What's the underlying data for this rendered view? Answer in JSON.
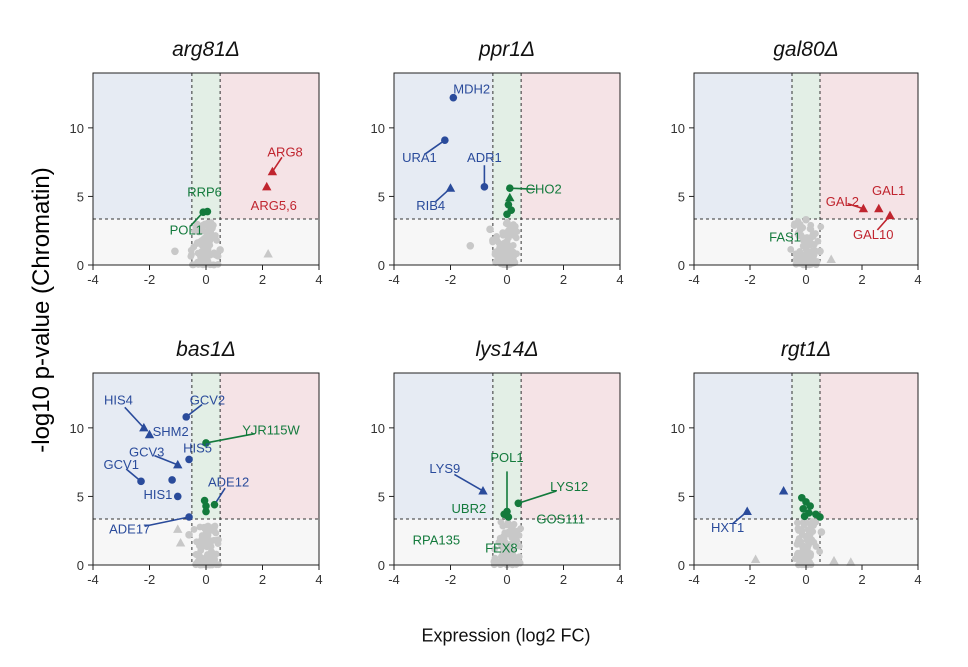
{
  "figure": {
    "ylabel": "-log10 p-value (Chromatin)",
    "xlabel": "Expression (log2 FC)"
  },
  "colors": {
    "down": "#2a4b9b",
    "up": "#c0252f",
    "neutral": "#137a3c",
    "background_point": "#c8c8c8",
    "down_region": "#e6ebf3",
    "up_region": "#f5e3e6",
    "neutral_region": "#e3efe6",
    "below_threshold_region": "#f7f7f7"
  },
  "chart_data": [
    {
      "type": "scatter",
      "title": "arg81Δ",
      "xlabel": "",
      "ylabel": "",
      "xlim": [
        -4,
        4
      ],
      "ylim": [
        0,
        14
      ],
      "xticks": [
        "-4",
        "-2",
        "0",
        "2",
        "4"
      ],
      "yticks": [
        "0",
        "5",
        "10"
      ],
      "fc_thresholds": [
        -0.5,
        0.5
      ],
      "pval_threshold": 3.35,
      "highlighted": [
        {
          "label": "ARG8",
          "x": 2.35,
          "y": 6.8,
          "marker": "triangle",
          "color": "up"
        },
        {
          "label": "ARG5,6",
          "x": 2.15,
          "y": 5.7,
          "marker": "triangle",
          "color": "up"
        },
        {
          "label": "RRP6",
          "x": 0.05,
          "y": 3.9,
          "marker": "circle",
          "color": "neutral"
        },
        {
          "label": "POL1",
          "x": -0.1,
          "y": 3.85,
          "marker": "circle",
          "color": "neutral"
        }
      ],
      "background": [
        {
          "x": -1.1,
          "y": 1.0,
          "marker": "circle"
        },
        {
          "x": -0.3,
          "y": 1.6,
          "marker": "circle"
        },
        {
          "x": 2.2,
          "y": 0.8,
          "marker": "triangle"
        },
        {
          "x": 0.5,
          "y": 1.1,
          "marker": "circle"
        }
      ],
      "annotations": [
        {
          "text": "ARG8",
          "x": 2.8,
          "y": 8.2,
          "color": "up"
        },
        {
          "text": "ARG5,6",
          "x": 2.4,
          "y": 4.3,
          "color": "up"
        },
        {
          "text": "RRP6",
          "x": -0.05,
          "y": 5.3,
          "color": "neutral"
        },
        {
          "text": "POL1",
          "x": -0.7,
          "y": 2.5,
          "color": "neutral"
        }
      ]
    },
    {
      "type": "scatter",
      "title": "ppr1Δ",
      "xlabel": "",
      "ylabel": "",
      "xlim": [
        -4,
        4
      ],
      "ylim": [
        0,
        14
      ],
      "xticks": [
        "-4",
        "-2",
        "0",
        "2",
        "4"
      ],
      "yticks": [
        "0",
        "5",
        "10"
      ],
      "fc_thresholds": [
        -0.5,
        0.5
      ],
      "pval_threshold": 3.35,
      "highlighted": [
        {
          "label": "MDH2",
          "x": -1.9,
          "y": 12.2,
          "marker": "circle",
          "color": "down"
        },
        {
          "label": "URA1",
          "x": -2.2,
          "y": 9.1,
          "marker": "circle",
          "color": "down"
        },
        {
          "label": "ADR1",
          "x": -0.8,
          "y": 5.7,
          "marker": "circle",
          "color": "down"
        },
        {
          "label": "RIB4",
          "x": -2.0,
          "y": 5.6,
          "marker": "triangle",
          "color": "down"
        },
        {
          "label": "CHO2",
          "x": 0.1,
          "y": 5.6,
          "marker": "circle",
          "color": "neutral"
        },
        {
          "x": 0.1,
          "y": 4.9,
          "marker": "triangle",
          "color": "neutral"
        },
        {
          "x": 0.05,
          "y": 4.4,
          "marker": "circle",
          "color": "neutral"
        },
        {
          "x": 0.15,
          "y": 4.0,
          "marker": "circle",
          "color": "neutral"
        },
        {
          "x": 0.0,
          "y": 3.7,
          "marker": "circle",
          "color": "neutral"
        }
      ],
      "background": [
        {
          "x": -1.3,
          "y": 1.4,
          "marker": "circle"
        },
        {
          "x": -0.6,
          "y": 2.6,
          "marker": "circle"
        },
        {
          "x": -0.5,
          "y": 1.8,
          "marker": "circle"
        }
      ],
      "annotations": [
        {
          "text": "MDH2",
          "x": -1.25,
          "y": 12.8,
          "color": "down"
        },
        {
          "text": "URA1",
          "x": -3.1,
          "y": 7.8,
          "color": "down"
        },
        {
          "text": "ADR1",
          "x": -0.8,
          "y": 7.8,
          "color": "down"
        },
        {
          "text": "RIB4",
          "x": -2.7,
          "y": 4.3,
          "color": "down"
        },
        {
          "text": "CHO2",
          "x": 1.3,
          "y": 5.5,
          "color": "neutral"
        }
      ]
    },
    {
      "type": "scatter",
      "title": "gal80Δ",
      "xlabel": "",
      "ylabel": "",
      "xlim": [
        -4,
        4
      ],
      "ylim": [
        0,
        14
      ],
      "xticks": [
        "-4",
        "-2",
        "0",
        "2",
        "4"
      ],
      "yticks": [
        "0",
        "5",
        "10"
      ],
      "fc_thresholds": [
        -0.5,
        0.5
      ],
      "pval_threshold": 3.35,
      "highlighted": [
        {
          "label": "GAL1",
          "x": 2.6,
          "y": 4.1,
          "marker": "triangle",
          "color": "up"
        },
        {
          "label": "GAL2",
          "x": 2.05,
          "y": 4.1,
          "marker": "triangle",
          "color": "up"
        },
        {
          "label": "GAL10",
          "x": 3.0,
          "y": 3.6,
          "marker": "triangle",
          "color": "up"
        }
      ],
      "background": [
        {
          "x": 0.0,
          "y": 3.3,
          "marker": "circle"
        },
        {
          "x": 0.9,
          "y": 0.4,
          "marker": "triangle"
        },
        {
          "x": 0.5,
          "y": 1.0,
          "marker": "circle"
        }
      ],
      "annotations": [
        {
          "text": "GAL1",
          "x": 2.95,
          "y": 5.4,
          "color": "up"
        },
        {
          "text": "GAL2",
          "x": 1.3,
          "y": 4.6,
          "color": "up"
        },
        {
          "text": "GAL10",
          "x": 2.4,
          "y": 2.2,
          "color": "up"
        },
        {
          "text": "FAS1",
          "x": -0.75,
          "y": 2.0,
          "color": "neutral"
        }
      ]
    },
    {
      "type": "scatter",
      "title": "bas1Δ",
      "xlabel": "",
      "ylabel": "",
      "xlim": [
        -4,
        4
      ],
      "ylim": [
        0,
        14
      ],
      "xticks": [
        "-4",
        "-2",
        "0",
        "2",
        "4"
      ],
      "yticks": [
        "0",
        "5",
        "10"
      ],
      "fc_thresholds": [
        -0.5,
        0.5
      ],
      "pval_threshold": 3.35,
      "highlighted": [
        {
          "label": "GCV2",
          "x": -0.7,
          "y": 10.8,
          "marker": "circle",
          "color": "down"
        },
        {
          "label": "HIS4",
          "x": -2.2,
          "y": 10.0,
          "marker": "triangle",
          "color": "down"
        },
        {
          "label": "SHM2",
          "x": -2.0,
          "y": 9.5,
          "marker": "triangle",
          "color": "down"
        },
        {
          "label": "YJR115W",
          "x": 0.0,
          "y": 8.9,
          "marker": "circle",
          "color": "neutral"
        },
        {
          "label": "HIS5",
          "x": -0.6,
          "y": 7.7,
          "marker": "circle",
          "color": "down"
        },
        {
          "label": "GCV3",
          "x": -1.0,
          "y": 7.3,
          "marker": "triangle",
          "color": "down"
        },
        {
          "x": -1.2,
          "y": 6.2,
          "marker": "circle",
          "color": "down"
        },
        {
          "label": "GCV1",
          "x": -2.3,
          "y": 6.1,
          "marker": "circle",
          "color": "down"
        },
        {
          "label": "HIS1",
          "x": -1.0,
          "y": 5.0,
          "marker": "circle",
          "color": "down"
        },
        {
          "label": "ADE12",
          "x": 0.3,
          "y": 4.4,
          "marker": "circle",
          "color": "neutral"
        },
        {
          "x": -0.05,
          "y": 4.7,
          "marker": "circle",
          "color": "neutral"
        },
        {
          "x": 0.0,
          "y": 4.3,
          "marker": "circle",
          "color": "neutral"
        },
        {
          "x": 0.0,
          "y": 3.9,
          "marker": "circle",
          "color": "neutral"
        },
        {
          "label": "ADE17",
          "x": -0.6,
          "y": 3.5,
          "marker": "circle",
          "color": "down"
        }
      ],
      "background": [
        {
          "x": -1.0,
          "y": 2.6,
          "marker": "triangle"
        },
        {
          "x": -0.9,
          "y": 1.6,
          "marker": "triangle"
        },
        {
          "x": -0.6,
          "y": 2.2,
          "marker": "circle"
        }
      ],
      "annotations": [
        {
          "text": "HIS4",
          "x": -3.1,
          "y": 12.0,
          "color": "down"
        },
        {
          "text": "SHM2",
          "x": -1.25,
          "y": 9.7,
          "color": "down"
        },
        {
          "text": "GCV2",
          "x": 0.05,
          "y": 12.0,
          "color": "down"
        },
        {
          "text": "YJR115W",
          "x": 2.3,
          "y": 9.8,
          "color": "neutral"
        },
        {
          "text": "HIS5",
          "x": -0.3,
          "y": 8.5,
          "color": "down"
        },
        {
          "text": "GCV3",
          "x": -2.1,
          "y": 8.2,
          "color": "down"
        },
        {
          "text": "GCV1",
          "x": -3.0,
          "y": 7.3,
          "color": "down"
        },
        {
          "text": "HIS1",
          "x": -1.7,
          "y": 5.1,
          "color": "down"
        },
        {
          "text": "ADE12",
          "x": 0.8,
          "y": 6.0,
          "color": "down"
        },
        {
          "text": "ADE17",
          "x": -2.7,
          "y": 2.6,
          "color": "down"
        }
      ]
    },
    {
      "type": "scatter",
      "title": "lys14Δ",
      "xlabel": "",
      "ylabel": "",
      "xlim": [
        -4,
        4
      ],
      "ylim": [
        0,
        14
      ],
      "xticks": [
        "-4",
        "-2",
        "0",
        "2",
        "4"
      ],
      "yticks": [
        "0",
        "5",
        "10"
      ],
      "fc_thresholds": [
        -0.5,
        0.5
      ],
      "pval_threshold": 3.35,
      "highlighted": [
        {
          "label": "LYS9",
          "x": -0.85,
          "y": 5.4,
          "marker": "triangle",
          "color": "down"
        },
        {
          "label": "LYS12",
          "x": 0.4,
          "y": 4.5,
          "marker": "circle",
          "color": "neutral"
        },
        {
          "label": "POL1",
          "x": 0.0,
          "y": 3.9,
          "marker": "circle",
          "color": "neutral"
        },
        {
          "x": -0.1,
          "y": 3.7,
          "marker": "circle",
          "color": "neutral"
        },
        {
          "x": 0.05,
          "y": 3.5,
          "marker": "circle",
          "color": "neutral"
        }
      ],
      "background": [],
      "annotations": [
        {
          "text": "POL1",
          "x": 0.0,
          "y": 7.8,
          "color": "neutral"
        },
        {
          "text": "LYS9",
          "x": -2.2,
          "y": 7.0,
          "color": "down"
        },
        {
          "text": "LYS12",
          "x": 2.2,
          "y": 5.7,
          "color": "neutral"
        },
        {
          "text": "UBR2",
          "x": -1.35,
          "y": 4.1,
          "color": "neutral"
        },
        {
          "text": "GOS111",
          "x": 1.9,
          "y": 3.3,
          "color": "neutral"
        },
        {
          "text": "RPA135",
          "x": -2.5,
          "y": 1.8,
          "color": "neutral"
        },
        {
          "text": "FEX8",
          "x": -0.2,
          "y": 1.2,
          "color": "neutral"
        }
      ]
    },
    {
      "type": "scatter",
      "title": "rgt1Δ",
      "xlabel": "",
      "ylabel": "",
      "xlim": [
        -4,
        4
      ],
      "ylim": [
        0,
        14
      ],
      "xticks": [
        "-4",
        "-2",
        "0",
        "2",
        "4"
      ],
      "yticks": [
        "0",
        "5",
        "10"
      ],
      "fc_thresholds": [
        -0.5,
        0.5
      ],
      "pval_threshold": 3.35,
      "highlighted": [
        {
          "x": -0.8,
          "y": 5.4,
          "marker": "triangle",
          "color": "down"
        },
        {
          "label": "HXT1",
          "x": -2.1,
          "y": 3.9,
          "marker": "triangle",
          "color": "down"
        },
        {
          "x": -0.15,
          "y": 4.9,
          "marker": "circle",
          "color": "neutral"
        },
        {
          "x": 0.0,
          "y": 4.6,
          "marker": "circle",
          "color": "neutral"
        },
        {
          "x": 0.15,
          "y": 4.3,
          "marker": "circle",
          "color": "neutral"
        },
        {
          "x": -0.1,
          "y": 4.1,
          "marker": "circle",
          "color": "neutral"
        },
        {
          "x": 0.1,
          "y": 3.8,
          "marker": "circle",
          "color": "neutral"
        },
        {
          "x": 0.35,
          "y": 3.7,
          "marker": "circle",
          "color": "neutral"
        },
        {
          "x": -0.05,
          "y": 3.55,
          "marker": "circle",
          "color": "neutral"
        },
        {
          "x": 0.5,
          "y": 3.5,
          "marker": "circle",
          "color": "neutral"
        }
      ],
      "background": [
        {
          "x": -1.8,
          "y": 0.4,
          "marker": "triangle"
        },
        {
          "x": 1.0,
          "y": 0.3,
          "marker": "triangle"
        },
        {
          "x": 1.6,
          "y": 0.2,
          "marker": "triangle"
        },
        {
          "x": 0.55,
          "y": 2.4,
          "marker": "circle"
        }
      ],
      "annotations": [
        {
          "text": "HXT1",
          "x": -2.8,
          "y": 2.7,
          "color": "down"
        }
      ]
    }
  ]
}
